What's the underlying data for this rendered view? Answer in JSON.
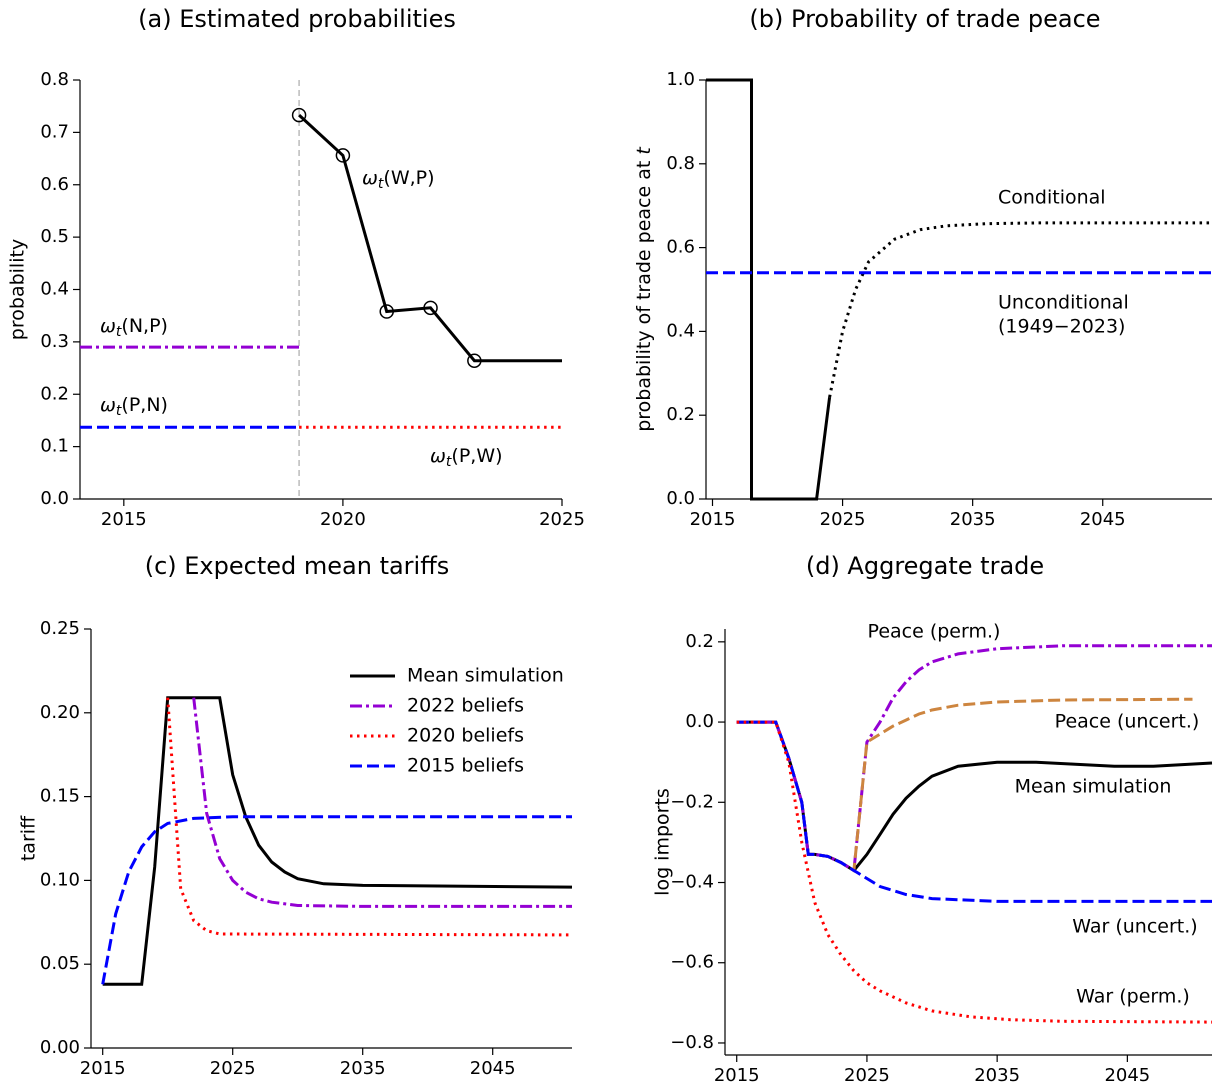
{
  "chart_data": [
    {
      "type": "line",
      "title": "(a) Estimated probabilities",
      "ylabel": "probability",
      "xlim": [
        2014,
        2025
      ],
      "xticks": [
        2015,
        2020,
        2025
      ],
      "ylim": [
        0,
        0.8
      ],
      "yticks": [
        {
          "value": 0,
          "label": "0.0"
        },
        0.1,
        0.2,
        0.3,
        0.4,
        0.5,
        0.6,
        0.7,
        0.8
      ],
      "vline": 2019,
      "series": [
        {
          "color": "#000000",
          "linestyle": "solid",
          "x": [
            2019,
            2020,
            2021,
            2022,
            2023,
            2025
          ],
          "values": [
            0.733,
            0.656,
            0.358,
            0.365,
            0.264,
            0.264
          ]
        },
        {
          "color": "#000000",
          "linestyle": "none",
          "marker": "circle",
          "x": [
            2019,
            2020,
            2021,
            2022,
            2023
          ],
          "values": [
            0.733,
            0.656,
            0.358,
            0.365,
            0.264
          ]
        },
        {
          "color": "#9400d3",
          "linestyle": "dashdot",
          "x": [
            2014,
            2019
          ],
          "values": [
            0.29,
            0.29
          ]
        },
        {
          "color": "#0000ff",
          "linestyle": "dashed",
          "x": [
            2014,
            2019
          ],
          "values": [
            0.137,
            0.137
          ]
        },
        {
          "color": "#ff0000",
          "linestyle": "dotted",
          "x": [
            2019,
            2025
          ],
          "values": [
            0.137,
            0.137
          ]
        }
      ],
      "annotations": [
        {
          "symbol": "ω",
          "subscript": "t",
          "args": "(W,P)"
        },
        {
          "symbol": "ω",
          "subscript": "t",
          "args": "(N,P)"
        },
        {
          "symbol": "ω",
          "subscript": "t",
          "args": "(P,N)"
        },
        {
          "symbol": "ω",
          "subscript": "t",
          "args": "(P,W)"
        }
      ]
    },
    {
      "type": "line",
      "title": "(b) Probability of trade peace",
      "ylabel": {
        "text": "probability of trade peace at",
        "variable": "t"
      },
      "xlim": [
        2014.5,
        2053.4
      ],
      "xticks": [
        2015,
        2025,
        2035,
        2045
      ],
      "ylim": [
        0,
        1
      ],
      "yticks": [
        {
          "value": 0,
          "label": "0.0"
        },
        0.2,
        0.4,
        0.6,
        0.8,
        {
          "value": 1,
          "label": "1.0"
        }
      ],
      "series": [
        {
          "color": "#000000",
          "linestyle": "solid",
          "x": [
            2014.5,
            2018,
            2018,
            2023,
            2024
          ],
          "values": [
            1,
            1,
            0,
            0,
            0.243
          ]
        },
        {
          "color": "#000000",
          "linestyle": "dotted",
          "x": [
            2024,
            2025,
            2026,
            2027,
            2029,
            2031,
            2033,
            2036,
            2040,
            2053.4
          ],
          "values": [
            0.243,
            0.4,
            0.5,
            0.566,
            0.62,
            0.643,
            0.652,
            0.657,
            0.659,
            0.659
          ]
        },
        {
          "color": "#0000ff",
          "linestyle": "dashed",
          "x": [
            2014.5,
            2053.4
          ],
          "values": [
            0.54,
            0.54
          ]
        }
      ],
      "annotations": [
        "Conditional",
        "Unconditional",
        "(1949−2023)"
      ]
    },
    {
      "type": "line",
      "title": "(c) Expected mean tariffs",
      "ylabel": "tariff",
      "legend": "upper right",
      "xlim": [
        2014.1,
        2051.1
      ],
      "xticks": [
        2015,
        2025,
        2035,
        2045
      ],
      "ylim": [
        0,
        0.25
      ],
      "yticks": [
        {
          "value": 0,
          "label": "0.00"
        },
        0.05,
        {
          "value": 0.1,
          "label": "0.10"
        },
        0.15,
        {
          "value": 0.2,
          "label": "0.20"
        },
        0.25
      ],
      "series": [
        {
          "name": "Mean simulation",
          "color": "#000000",
          "linestyle": "solid",
          "x": [
            2015,
            2018,
            2019,
            2020,
            2024,
            2025,
            2026,
            2027,
            2028,
            2029,
            2030,
            2032,
            2035,
            2051.1
          ],
          "values": [
            0.038,
            0.038,
            0.108,
            0.209,
            0.209,
            0.163,
            0.138,
            0.121,
            0.111,
            0.105,
            0.101,
            0.098,
            0.097,
            0.096
          ]
        },
        {
          "name": "2022 beliefs",
          "color": "#9400d3",
          "linestyle": "dashdot",
          "x": [
            2022,
            2023,
            2024,
            2025,
            2026,
            2027,
            2028,
            2030,
            2035,
            2051.1
          ],
          "values": [
            0.209,
            0.14,
            0.113,
            0.1,
            0.093,
            0.089,
            0.087,
            0.085,
            0.0845,
            0.0845
          ]
        },
        {
          "name": "2020 beliefs",
          "color": "#ff0000",
          "linestyle": "dotted",
          "x": [
            2020,
            2021,
            2022,
            2023,
            2024,
            2051.1
          ],
          "values": [
            0.209,
            0.095,
            0.076,
            0.07,
            0.068,
            0.0675
          ]
        },
        {
          "name": "2015 beliefs",
          "color": "#0000ff",
          "linestyle": "dashed",
          "x": [
            2015,
            2016,
            2017,
            2018,
            2019,
            2020,
            2022,
            2025,
            2051.1
          ],
          "values": [
            0.038,
            0.08,
            0.105,
            0.12,
            0.129,
            0.134,
            0.137,
            0.138,
            0.138
          ]
        }
      ]
    },
    {
      "type": "line",
      "title": "(d) Aggregate trade",
      "ylabel": "log imports",
      "legend": "inline",
      "xlim": [
        2014.1,
        2051.5
      ],
      "xticks": [
        2015,
        2025,
        2035,
        2045
      ],
      "ylim": [
        -0.83,
        0.232
      ],
      "yticks": [
        {
          "value": -0.8,
          "label": "−0.8"
        },
        {
          "value": -0.6,
          "label": "−0.6"
        },
        {
          "value": -0.4,
          "label": "−0.4"
        },
        {
          "value": -0.2,
          "label": "−0.2"
        },
        {
          "value": 0,
          "label": "0.0"
        },
        0.2
      ],
      "series": [
        {
          "name": "Mean simulation",
          "color": "#000000",
          "linestyle": "solid",
          "x": [
            2015,
            2018,
            2019,
            2020,
            2020.5,
            2021,
            2022,
            2023,
            2024,
            2025,
            2026,
            2027,
            2028,
            2029,
            2030,
            2032,
            2035,
            2038,
            2041,
            2044,
            2047,
            2051.5
          ],
          "values": [
            0,
            0,
            -0.09,
            -0.2,
            -0.33,
            -0.33,
            -0.335,
            -0.35,
            -0.37,
            -0.33,
            -0.28,
            -0.23,
            -0.19,
            -0.16,
            -0.135,
            -0.11,
            -0.1,
            -0.1,
            -0.105,
            -0.11,
            -0.11,
            -0.102
          ]
        },
        {
          "name": "Peace (perm.)",
          "color": "#9400d3",
          "linestyle": "dashdot",
          "x": [
            2015,
            2018,
            2019,
            2020,
            2020.5,
            2021,
            2022,
            2023,
            2024,
            2025,
            2026,
            2027,
            2028,
            2029,
            2030,
            2032,
            2035,
            2040,
            2051.5
          ],
          "values": [
            0,
            0,
            -0.09,
            -0.2,
            -0.33,
            -0.33,
            -0.335,
            -0.35,
            -0.37,
            -0.05,
            0,
            0.06,
            0.1,
            0.13,
            0.15,
            0.17,
            0.183,
            0.19,
            0.19
          ]
        },
        {
          "name": "Peace (uncert.)",
          "color": "#cd853f",
          "linestyle": "dashed",
          "x": [
            2015,
            2018,
            2019,
            2020,
            2020.5,
            2021,
            2022,
            2023,
            2024,
            2025,
            2026,
            2027,
            2028,
            2029,
            2030,
            2032,
            2035,
            2040,
            2050
          ],
          "values": [
            0,
            0,
            -0.09,
            -0.2,
            -0.33,
            -0.33,
            -0.335,
            -0.35,
            -0.37,
            -0.05,
            -0.03,
            -0.01,
            0.005,
            0.02,
            0.03,
            0.042,
            0.05,
            0.055,
            0.057
          ]
        },
        {
          "name": "War (uncert.)",
          "color": "#0000ff",
          "linestyle": "dashed",
          "x": [
            2015,
            2018,
            2019,
            2020,
            2020.5,
            2021,
            2022,
            2023,
            2024,
            2025,
            2026,
            2027,
            2028,
            2030,
            2035,
            2051.5
          ],
          "values": [
            0,
            0,
            -0.09,
            -0.2,
            -0.33,
            -0.33,
            -0.335,
            -0.35,
            -0.37,
            -0.39,
            -0.41,
            -0.42,
            -0.43,
            -0.44,
            -0.447,
            -0.447
          ]
        },
        {
          "name": "War (perm.)",
          "color": "#ff0000",
          "linestyle": "dotted",
          "x": [
            2015,
            2018,
            2019,
            2020,
            2021,
            2022,
            2023,
            2024,
            2025,
            2026,
            2028,
            2030,
            2033,
            2036,
            2040,
            2051.5
          ],
          "values": [
            0,
            0,
            -0.1,
            -0.3,
            -0.45,
            -0.53,
            -0.58,
            -0.62,
            -0.65,
            -0.67,
            -0.7,
            -0.72,
            -0.735,
            -0.742,
            -0.746,
            -0.748
          ]
        }
      ]
    }
  ]
}
